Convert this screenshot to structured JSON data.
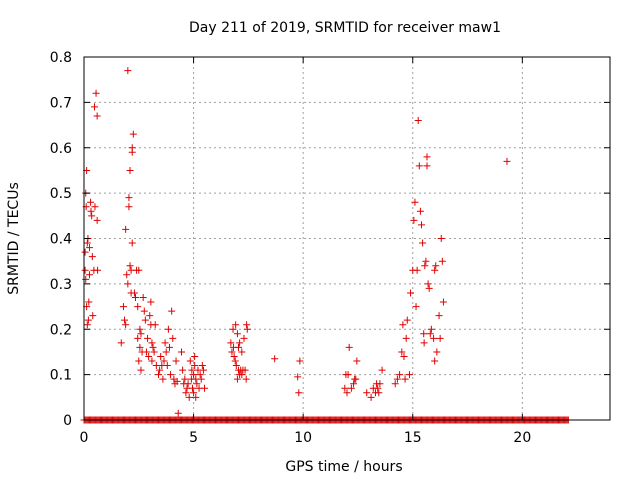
{
  "chart_data": {
    "type": "scatter",
    "title": "Day 211 of 2019, SRMTID for receiver maw1",
    "xlabel": "GPS time / hours",
    "ylabel": "SRMTID / TECUs",
    "xlim": [
      0,
      24
    ],
    "ylim": [
      0,
      0.8
    ],
    "xticks": [
      0,
      5,
      10,
      15,
      20
    ],
    "yticks": [
      0,
      0.1,
      0.2,
      0.3,
      0.4,
      0.5,
      0.6,
      0.7,
      0.8
    ],
    "xtick_labels": [
      "0",
      "5",
      "10",
      "15",
      "20"
    ],
    "ytick_labels": [
      "0",
      "0.1",
      "0.2",
      "0.3",
      "0.4",
      "0.5",
      "0.6",
      "0.7",
      "0.8"
    ],
    "grid": true,
    "marker": "+",
    "color": "#e00000",
    "zero_baseline": {
      "x_start": 0.0,
      "x_end": 22.1,
      "step": 0.05,
      "y": 0
    },
    "series": [
      {
        "name": "maw1",
        "points": [
          [
            0.05,
            0.37
          ],
          [
            0.08,
            0.5
          ],
          [
            0.1,
            0.47
          ],
          [
            0.12,
            0.55
          ],
          [
            0.15,
            0.39
          ],
          [
            0.18,
            0.4
          ],
          [
            0.05,
            0.33
          ],
          [
            0.08,
            0.31
          ],
          [
            0.12,
            0.25
          ],
          [
            0.15,
            0.21
          ],
          [
            0.2,
            0.22
          ],
          [
            0.22,
            0.26
          ],
          [
            0.25,
            0.38
          ],
          [
            0.25,
            0.32
          ],
          [
            0.3,
            0.48
          ],
          [
            0.32,
            0.46
          ],
          [
            0.35,
            0.45
          ],
          [
            0.38,
            0.36
          ],
          [
            0.4,
            0.23
          ],
          [
            0.45,
            0.33
          ],
          [
            0.48,
            0.69
          ],
          [
            0.5,
            0.47
          ],
          [
            0.55,
            0.72
          ],
          [
            0.6,
            0.67
          ],
          [
            0.6,
            0.44
          ],
          [
            0.62,
            0.33
          ],
          [
            1.7,
            0.17
          ],
          [
            1.8,
            0.25
          ],
          [
            1.85,
            0.22
          ],
          [
            1.9,
            0.21
          ],
          [
            1.9,
            0.42
          ],
          [
            1.95,
            0.32
          ],
          [
            2.0,
            0.77
          ],
          [
            2.0,
            0.3
          ],
          [
            2.05,
            0.47
          ],
          [
            2.05,
            0.49
          ],
          [
            2.1,
            0.34
          ],
          [
            2.1,
            0.55
          ],
          [
            2.15,
            0.33
          ],
          [
            2.15,
            0.28
          ],
          [
            2.2,
            0.6
          ],
          [
            2.2,
            0.59
          ],
          [
            2.2,
            0.39
          ],
          [
            2.25,
            0.63
          ],
          [
            2.3,
            0.28
          ],
          [
            2.35,
            0.27
          ],
          [
            2.4,
            0.33
          ],
          [
            2.45,
            0.25
          ],
          [
            2.45,
            0.18
          ],
          [
            2.5,
            0.33
          ],
          [
            2.5,
            0.13
          ],
          [
            2.55,
            0.2
          ],
          [
            2.55,
            0.16
          ],
          [
            2.6,
            0.19
          ],
          [
            2.6,
            0.11
          ],
          [
            2.65,
            0.15
          ],
          [
            2.7,
            0.27
          ],
          [
            2.75,
            0.24
          ],
          [
            2.8,
            0.22
          ],
          [
            2.85,
            0.15
          ],
          [
            2.9,
            0.18
          ],
          [
            2.95,
            0.14
          ],
          [
            3.0,
            0.23
          ],
          [
            3.05,
            0.26
          ],
          [
            3.05,
            0.21
          ],
          [
            3.1,
            0.17
          ],
          [
            3.1,
            0.13
          ],
          [
            3.15,
            0.16
          ],
          [
            3.2,
            0.15
          ],
          [
            3.25,
            0.21
          ],
          [
            3.3,
            0.12
          ],
          [
            3.4,
            0.1
          ],
          [
            3.45,
            0.11
          ],
          [
            3.5,
            0.14
          ],
          [
            3.55,
            0.12
          ],
          [
            3.6,
            0.09
          ],
          [
            3.65,
            0.13
          ],
          [
            3.7,
            0.17
          ],
          [
            3.75,
            0.15
          ],
          [
            3.8,
            0.12
          ],
          [
            3.85,
            0.2
          ],
          [
            3.9,
            0.16
          ],
          [
            3.95,
            0.1
          ],
          [
            4.0,
            0.24
          ],
          [
            4.05,
            0.18
          ],
          [
            4.1,
            0.09
          ],
          [
            4.15,
            0.08
          ],
          [
            4.2,
            0.13
          ],
          [
            4.25,
            0.085
          ],
          [
            4.3,
            0.015
          ],
          [
            4.45,
            0.15
          ],
          [
            4.5,
            0.11
          ],
          [
            4.55,
            0.08
          ],
          [
            4.6,
            0.09
          ],
          [
            4.65,
            0.06
          ],
          [
            4.7,
            0.07
          ],
          [
            4.75,
            0.08
          ],
          [
            4.8,
            0.05
          ],
          [
            4.85,
            0.13
          ],
          [
            4.9,
            0.09
          ],
          [
            4.92,
            0.11
          ],
          [
            4.95,
            0.07
          ],
          [
            5.0,
            0.1
          ],
          [
            5.0,
            0.06
          ],
          [
            5.05,
            0.14
          ],
          [
            5.05,
            0.12
          ],
          [
            5.1,
            0.09
          ],
          [
            5.1,
            0.05
          ],
          [
            5.15,
            0.08
          ],
          [
            5.2,
            0.11
          ],
          [
            5.25,
            0.07
          ],
          [
            5.3,
            0.1
          ],
          [
            5.35,
            0.09
          ],
          [
            5.4,
            0.12
          ],
          [
            5.45,
            0.11
          ],
          [
            5.5,
            0.07
          ],
          [
            6.7,
            0.17
          ],
          [
            6.75,
            0.15
          ],
          [
            6.8,
            0.2
          ],
          [
            6.82,
            0.16
          ],
          [
            6.85,
            0.14
          ],
          [
            6.9,
            0.13
          ],
          [
            6.92,
            0.21
          ],
          [
            6.95,
            0.12
          ],
          [
            7.0,
            0.19
          ],
          [
            7.0,
            0.09
          ],
          [
            7.05,
            0.16
          ],
          [
            7.05,
            0.11
          ],
          [
            7.1,
            0.17
          ],
          [
            7.1,
            0.1
          ],
          [
            7.15,
            0.11
          ],
          [
            7.2,
            0.15
          ],
          [
            7.2,
            0.1
          ],
          [
            7.25,
            0.11
          ],
          [
            7.3,
            0.18
          ],
          [
            7.35,
            0.11
          ],
          [
            7.4,
            0.09
          ],
          [
            7.42,
            0.21
          ],
          [
            7.45,
            0.2
          ],
          [
            8.7,
            0.135
          ],
          [
            9.75,
            0.095
          ],
          [
            9.8,
            0.06
          ],
          [
            9.85,
            0.13
          ],
          [
            11.9,
            0.07
          ],
          [
            11.95,
            0.1
          ],
          [
            12.0,
            0.06
          ],
          [
            12.05,
            0.1
          ],
          [
            12.1,
            0.16
          ],
          [
            12.2,
            0.07
          ],
          [
            12.3,
            0.08
          ],
          [
            12.35,
            0.09
          ],
          [
            12.4,
            0.09
          ],
          [
            12.45,
            0.13
          ],
          [
            12.9,
            0.06
          ],
          [
            13.1,
            0.05
          ],
          [
            13.2,
            0.07
          ],
          [
            13.3,
            0.06
          ],
          [
            13.35,
            0.08
          ],
          [
            13.4,
            0.07
          ],
          [
            13.45,
            0.06
          ],
          [
            13.5,
            0.08
          ],
          [
            13.6,
            0.11
          ],
          [
            14.2,
            0.08
          ],
          [
            14.3,
            0.09
          ],
          [
            14.4,
            0.1
          ],
          [
            14.5,
            0.15
          ],
          [
            14.55,
            0.21
          ],
          [
            14.6,
            0.14
          ],
          [
            14.65,
            0.09
          ],
          [
            14.7,
            0.18
          ],
          [
            14.75,
            0.22
          ],
          [
            14.85,
            0.1
          ],
          [
            14.9,
            0.28
          ],
          [
            15.0,
            0.33
          ],
          [
            15.05,
            0.44
          ],
          [
            15.1,
            0.48
          ],
          [
            15.15,
            0.25
          ],
          [
            15.2,
            0.33
          ],
          [
            15.25,
            0.66
          ],
          [
            15.3,
            0.56
          ],
          [
            15.35,
            0.46
          ],
          [
            15.4,
            0.43
          ],
          [
            15.45,
            0.39
          ],
          [
            15.5,
            0.19
          ],
          [
            15.52,
            0.17
          ],
          [
            15.55,
            0.34
          ],
          [
            15.6,
            0.35
          ],
          [
            15.65,
            0.58
          ],
          [
            15.65,
            0.56
          ],
          [
            15.7,
            0.3
          ],
          [
            15.75,
            0.29
          ],
          [
            15.8,
            0.19
          ],
          [
            15.85,
            0.2
          ],
          [
            15.95,
            0.18
          ],
          [
            16.0,
            0.13
          ],
          [
            16.0,
            0.33
          ],
          [
            16.05,
            0.34
          ],
          [
            16.1,
            0.15
          ],
          [
            16.2,
            0.23
          ],
          [
            16.25,
            0.18
          ],
          [
            16.3,
            0.4
          ],
          [
            16.35,
            0.35
          ],
          [
            16.4,
            0.26
          ],
          [
            19.3,
            0.57
          ]
        ]
      }
    ]
  }
}
